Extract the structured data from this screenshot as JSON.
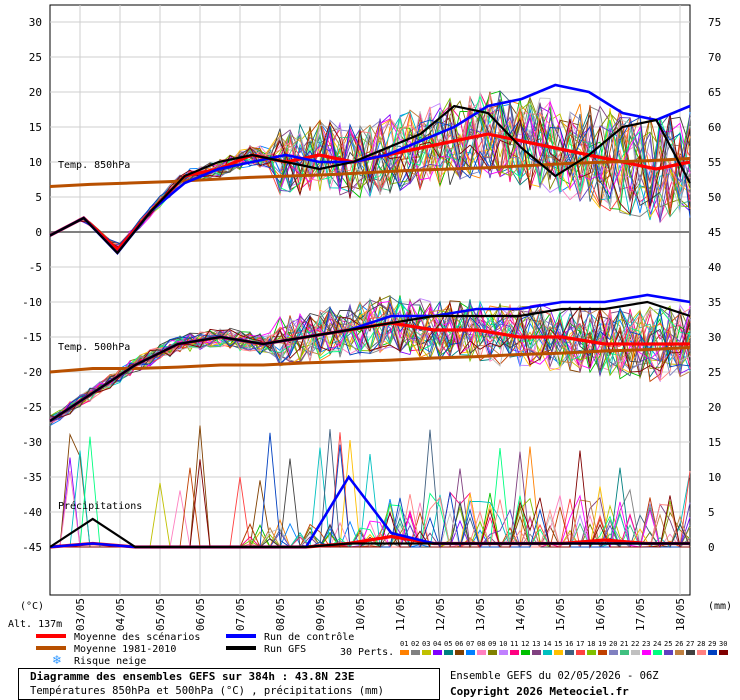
{
  "chart_data": {
    "type": "line",
    "y_left_ticks": [
      "30",
      "25",
      "20",
      "15",
      "10",
      "5",
      "0",
      "-5",
      "-10",
      "-15",
      "-20",
      "-25",
      "-30",
      "-35",
      "-40",
      "-45"
    ],
    "y_right_ticks": [
      "75",
      "70",
      "65",
      "60",
      "55",
      "50",
      "45",
      "40",
      "35",
      "30",
      "25",
      "20",
      "15",
      "10",
      "5",
      "0"
    ],
    "x_ticks": [
      "03/05",
      "04/05",
      "05/05",
      "06/05",
      "07/05",
      "08/05",
      "09/05",
      "10/05",
      "11/05",
      "12/05",
      "13/05",
      "14/05",
      "15/05",
      "16/05",
      "17/05",
      "18/05"
    ],
    "ylim": [
      -45,
      30
    ],
    "y_right_lim": [
      0,
      75
    ],
    "left_unit": "(°C)",
    "right_unit": "(mm)",
    "altitude": "Alt. 137m",
    "panel_labels": {
      "t850": "Temp. 850hPa",
      "t500": "Temp. 500hPa",
      "precip": "Précipitations"
    },
    "series": [
      {
        "name": "Moyenne des scénarios",
        "color": "#ff0000",
        "t850": [
          -0.5,
          2,
          -2.5,
          3,
          8,
          9,
          11,
          10,
          11,
          10,
          11,
          12,
          13,
          14,
          13,
          12,
          11,
          10,
          9,
          10
        ],
        "t500": [
          -27,
          -23,
          -19,
          -16,
          -15,
          -16,
          -15,
          -14,
          -13,
          -14,
          -14,
          -15,
          -15,
          -16,
          -16,
          -16
        ],
        "precip": [
          0,
          0.5,
          0,
          0,
          0,
          0,
          0,
          0.5,
          1.5,
          0.5,
          0.5,
          0.5,
          0.5,
          1,
          0.5,
          0.5
        ]
      },
      {
        "name": "Moyenne 1981-2010",
        "color": "#b85000",
        "t850": [
          6.5,
          6.8,
          7,
          7.2,
          7.5,
          7.8,
          8,
          8.2,
          8.5,
          8.8,
          9,
          9.2,
          9.5,
          9.8,
          10,
          10.2,
          10.5
        ],
        "t500": [
          -20,
          -19.5,
          -19.5,
          -19.3,
          -19,
          -19,
          -18.7,
          -18.5,
          -18.3,
          -18,
          -17.8,
          -17.5,
          -17.3,
          -17,
          -16.8,
          -16.5
        ]
      },
      {
        "name": "Run de contrôle",
        "color": "#0000ff",
        "t850": [
          -0.5,
          2,
          -3,
          3,
          7,
          9,
          10,
          11,
          10,
          10,
          11,
          13,
          15,
          18,
          19,
          21,
          20,
          17,
          16,
          18
        ],
        "t500": [
          -27,
          -23,
          -19,
          -16,
          -15,
          -16,
          -15,
          -14,
          -12,
          -12,
          -11,
          -11,
          -10,
          -10,
          -9,
          -10
        ],
        "precip": [
          0,
          0.5,
          0,
          0,
          0,
          0,
          0,
          10,
          2,
          0.5,
          0.5,
          0.5,
          0.5,
          0.5,
          0.5,
          0.5
        ]
      },
      {
        "name": "Run GFS",
        "color": "#000000",
        "t850": [
          -0.5,
          2,
          -3,
          3,
          8,
          10,
          11,
          10,
          9,
          10,
          12,
          14,
          18,
          17,
          12,
          8,
          11,
          15,
          16,
          7
        ],
        "t500": [
          -27,
          -23,
          -19,
          -16,
          -15,
          -16,
          -15,
          -14,
          -13,
          -12,
          -12,
          -12,
          -11,
          -11,
          -10,
          -12
        ],
        "precip": [
          0,
          4,
          0,
          0,
          0,
          0,
          0,
          0.5,
          0.5,
          0.5,
          0.5,
          0.5,
          0.5,
          0.5,
          0.5,
          0.5
        ]
      }
    ]
  },
  "legend": {
    "mean": "Moyenne des scénarios",
    "climo": "Moyenne 1981-2010",
    "snow": "Risque neige",
    "control": "Run de contrôle",
    "gfs": "Run GFS",
    "perts": "30 Perts.",
    "pert_numbers": [
      "01",
      "02",
      "03",
      "04",
      "05",
      "06",
      "07",
      "08",
      "09",
      "10",
      "11",
      "12",
      "13",
      "14",
      "15",
      "16",
      "17",
      "18",
      "19",
      "20",
      "21",
      "22",
      "23",
      "24",
      "25",
      "26",
      "27",
      "28",
      "29",
      "30"
    ],
    "pert_colors": [
      "#ff8000",
      "#808080",
      "#c0c000",
      "#8000ff",
      "#008080",
      "#804000",
      "#0080ff",
      "#ff80c0",
      "#808000",
      "#c080ff",
      "#ff0080",
      "#00c000",
      "#804080",
      "#00c0c0",
      "#ffc000",
      "#406080",
      "#ff4040",
      "#80c000",
      "#c04000",
      "#8080c0",
      "#40c080",
      "#c0c0c0",
      "#ff00ff",
      "#00ff80",
      "#6040c0",
      "#c08040",
      "#404040",
      "#ff8080",
      "#0040c0",
      "#800000"
    ]
  },
  "footer": {
    "title": "Diagramme des ensembles GEFS sur 384h : 43.8N 23E",
    "subtitle": "Températures 850hPa et 500hPa (°C) , précipitations (mm)",
    "run": "Ensemble GEFS du 02/05/2026 - 06Z",
    "copyright": "Copyright 2026 Meteociel.fr"
  },
  "colors": {
    "mean": "#ff0000",
    "climo": "#b85000",
    "control": "#0000ff",
    "gfs": "#000000",
    "snow": "#3399ff"
  }
}
